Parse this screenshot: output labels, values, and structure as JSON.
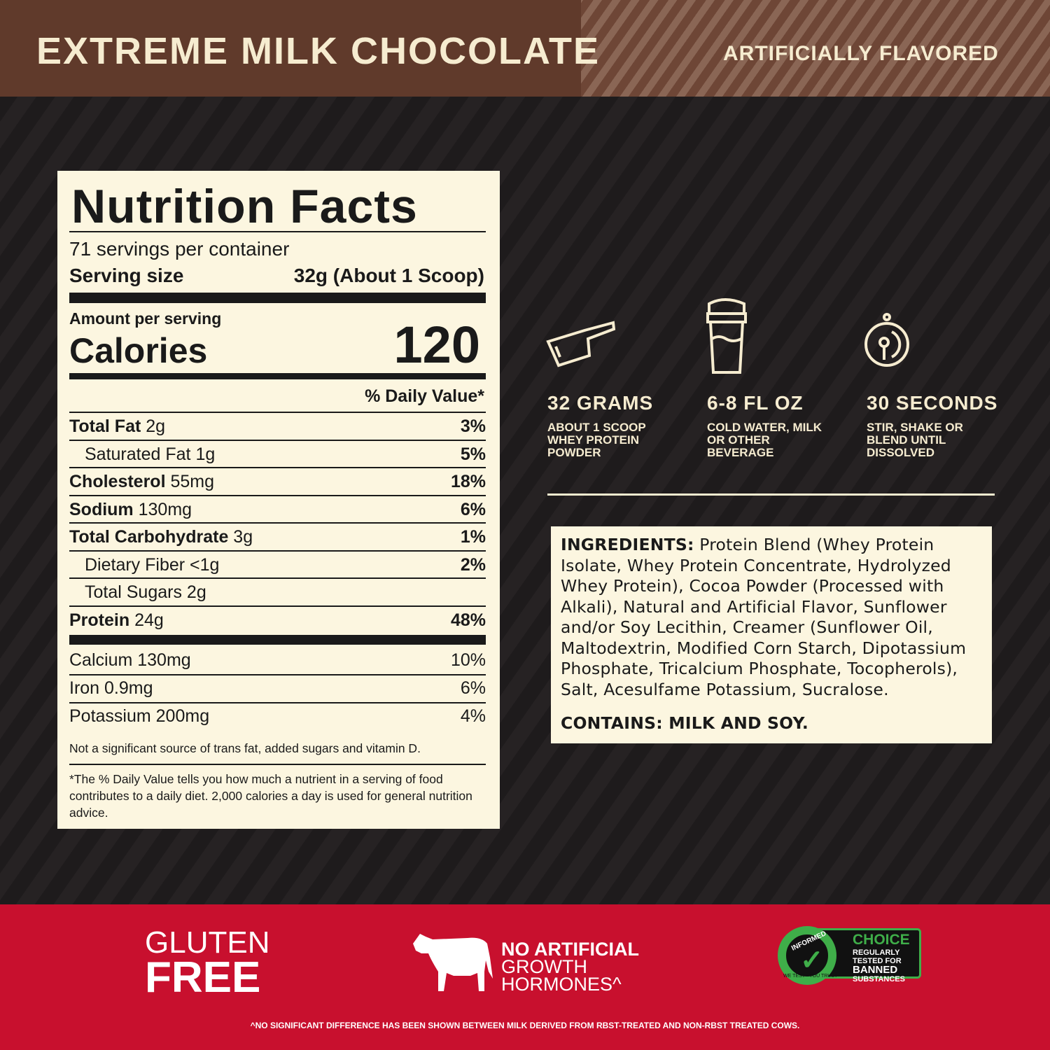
{
  "header": {
    "flavor": "EXTREME MILK CHOCOLATE",
    "flavor_note": "ARTIFICIALLY FLAVORED"
  },
  "nutrition": {
    "title": "Nutrition Facts",
    "servings": "71 servings per container",
    "serving_size_label": "Serving size",
    "serving_size_value": "32g (About 1 Scoop)",
    "amount_per_serving": "Amount per serving",
    "calories_label": "Calories",
    "calories_value": "120",
    "dv_header": "% Daily Value*",
    "rows": [
      {
        "name": "Total Fat",
        "amount": "2g",
        "dv": "3%",
        "bold": true,
        "indent": false
      },
      {
        "name": "Saturated Fat",
        "amount": "1g",
        "dv": "5%",
        "bold": false,
        "indent": true
      },
      {
        "name": "Cholesterol",
        "amount": "55mg",
        "dv": "18%",
        "bold": true,
        "indent": false
      },
      {
        "name": "Sodium",
        "amount": "130mg",
        "dv": "6%",
        "bold": true,
        "indent": false
      },
      {
        "name": "Total Carbohydrate",
        "amount": "3g",
        "dv": "1%",
        "bold": true,
        "indent": false
      },
      {
        "name": "Dietary Fiber",
        "amount": "<1g",
        "dv": "2%",
        "bold": false,
        "indent": true
      },
      {
        "name": "Total Sugars",
        "amount": "2g",
        "dv": "",
        "bold": false,
        "indent": true
      },
      {
        "name": "Protein",
        "amount": "24g",
        "dv": "48%",
        "bold": true,
        "indent": false
      }
    ],
    "minerals": [
      {
        "name": "Calcium 130mg",
        "dv": "10%"
      },
      {
        "name": "Iron 0.9mg",
        "dv": "6%"
      },
      {
        "name": "Potassium 200mg",
        "dv": "4%"
      }
    ],
    "note": "Not a significant source of trans fat, added sugars and vitamin D.",
    "footnote": "*The % Daily Value tells you how much a nutrient in a serving of food contributes to a daily diet. 2,000 calories a day is used for general nutrition advice."
  },
  "steps": [
    {
      "icon": "scoop-icon",
      "title": "32 GRAMS",
      "sub": "ABOUT 1 SCOOP WHEY PROTEIN POWDER"
    },
    {
      "icon": "shaker-icon",
      "title": "6-8 FL OZ",
      "sub": "COLD WATER, MILK OR OTHER BEVERAGE"
    },
    {
      "icon": "stopwatch-icon",
      "title": "30 SECONDS",
      "sub": "STIR, SHAKE OR BLEND UNTIL DISSOLVED"
    }
  ],
  "ingredients": {
    "label": "INGREDIENTS:",
    "text": "Protein Blend (Whey Protein Isolate, Whey Protein Concentrate, Hydrolyzed Whey Protein), Cocoa Powder (Processed with Alkali), Natural and Artificial Flavor, Sunflower and/or Soy Lecithin, Creamer (Sunflower Oil, Maltodextrin, Modified Corn Starch, Dipotassium Phosphate, Tricalcium Phosphate, Tocopherols), Salt, Acesulfame Potassium, Sucralose.",
    "contains": "CONTAINS: MILK AND SOY."
  },
  "badges": {
    "gluten1": "GLUTEN",
    "gluten2": "FREE",
    "noart1": "NO ARTIFICIAL",
    "noart2": "GROWTH",
    "noart3": "HORMONES^",
    "informed": "INFORMED",
    "we_test": "WE TEST · YOU TRUST",
    "choice": "CHOICE",
    "choice_sub": [
      "REGULARLY",
      "TESTED FOR",
      "BANNED",
      "SUBSTANCES"
    ]
  },
  "disclaimer": "^NO SIGNIFICANT DIFFERENCE HAS BEEN SHOWN BETWEEN MILK DERIVED FROM RBST-TREATED AND NON-RBST TREATED COWS.",
  "colors": {
    "header": "#603a2b",
    "cream": "#f6ecd0",
    "dark": "#231f20",
    "red": "#c8102e",
    "green": "#3fae49"
  }
}
